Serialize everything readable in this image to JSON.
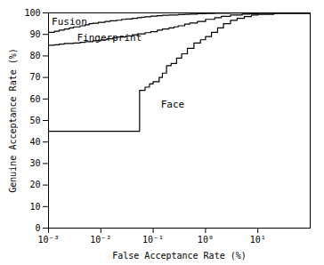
{
  "chart_data": {
    "type": "step",
    "xlabel": "False Acceptance Rate (%)",
    "ylabel": "Genuine Acceptance Rate (%)",
    "log": "x",
    "grid": false,
    "xlim": [
      0.001,
      100
    ],
    "xticks": [
      {
        "value": 0.001,
        "label": "10⁻³"
      },
      {
        "value": 0.01,
        "label": "10⁻²"
      },
      {
        "value": 0.1,
        "label": "10⁻¹"
      },
      {
        "value": 1,
        "label": "10⁰"
      },
      {
        "value": 10,
        "label": "10¹"
      }
    ],
    "ylim": [
      0,
      100
    ],
    "yticks": [
      0,
      10,
      20,
      30,
      40,
      50,
      60,
      70,
      80,
      90,
      100
    ],
    "series": [
      {
        "color": "#000000",
        "x": [
          0.001,
          0.0013,
          0.0016,
          0.002,
          0.0025,
          0.003,
          0.004,
          0.005,
          0.006,
          0.007,
          0.009,
          0.012,
          0.015,
          0.02,
          0.025,
          0.03,
          0.04,
          0.05,
          0.06,
          0.07,
          0.09,
          0.12,
          0.15,
          0.2,
          0.3,
          0.4,
          0.5,
          0.7,
          1.0,
          1.5,
          2.0,
          3.0,
          5.0,
          7.0,
          10.0,
          15.0,
          20.0,
          100.0
        ],
        "values": [
          91.0,
          91.5,
          92.0,
          92.5,
          93.0,
          93.5,
          94.0,
          94.5,
          95.0,
          95.2,
          95.6,
          96.0,
          96.3,
          96.6,
          97.0,
          97.2,
          97.5,
          97.8,
          98.0,
          98.2,
          98.5,
          98.7,
          98.9,
          99.0,
          99.2,
          99.3,
          99.4,
          99.6,
          99.7,
          99.8,
          99.85,
          99.9,
          99.93,
          99.95,
          99.97,
          99.98,
          99.99,
          99.99
        ]
      },
      {
        "color": "#000000",
        "x": [
          0.001,
          0.0013,
          0.0016,
          0.002,
          0.003,
          0.004,
          0.005,
          0.007,
          0.01,
          0.013,
          0.017,
          0.02,
          0.03,
          0.04,
          0.05,
          0.07,
          0.09,
          0.12,
          0.15,
          0.2,
          0.25,
          0.3,
          0.4,
          0.5,
          0.7,
          1.0,
          1.5,
          2.0,
          3.0,
          5.0,
          7.0,
          10.0,
          20.0,
          100.0
        ],
        "values": [
          85.0,
          85.2,
          85.5,
          85.8,
          86.0,
          86.3,
          86.6,
          87.0,
          87.5,
          88.0,
          88.4,
          88.8,
          89.3,
          89.8,
          90.2,
          90.8,
          91.3,
          92.0,
          92.5,
          93.0,
          93.5,
          94.0,
          94.8,
          95.3,
          96.0,
          97.0,
          97.8,
          98.4,
          99.0,
          99.4,
          99.6,
          99.8,
          99.9,
          99.95
        ]
      },
      {
        "color": "#000000",
        "x": [
          0.001,
          0.05,
          0.055,
          0.07,
          0.085,
          0.1,
          0.13,
          0.15,
          0.18,
          0.22,
          0.28,
          0.35,
          0.45,
          0.6,
          0.8,
          1.0,
          1.3,
          1.7,
          2.2,
          3.0,
          4.0,
          5.5,
          7.5,
          10.0,
          20.0,
          100.0
        ],
        "values": [
          45.0,
          45.0,
          64.0,
          65.5,
          67.0,
          68.0,
          70.0,
          72.0,
          75.5,
          76.5,
          79.0,
          81.0,
          83.5,
          86.0,
          87.5,
          89.0,
          91.0,
          93.0,
          95.0,
          96.5,
          97.5,
          98.3,
          99.0,
          99.3,
          99.7,
          99.9
        ]
      }
    ],
    "annotations": [
      {
        "text": "Fusion",
        "x": 0.00115,
        "y": 96.0
      },
      {
        "text": "Fingerprint",
        "x": 0.0035,
        "y": 88.5
      },
      {
        "text": "Face",
        "x": 0.14,
        "y": 57.5
      }
    ]
  }
}
